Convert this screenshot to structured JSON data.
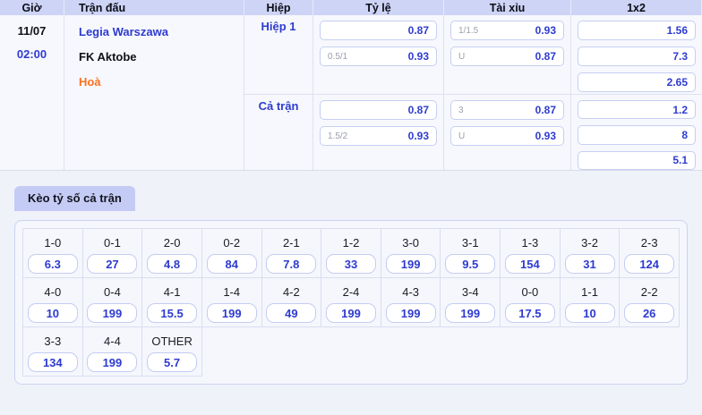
{
  "colors": {
    "accent_blue": "#2e3bd0",
    "draw_orange": "#fb7220",
    "header_bg": "#cdd4f6",
    "tab_bg": "#c4cbf4",
    "page_bg": "#f0f2fa"
  },
  "match_table": {
    "headers": {
      "time": "Giờ",
      "match": "Trận đấu",
      "half": "Hiệp",
      "handicap": "Tỷ lệ",
      "over_under": "Tài xỉu",
      "one_x_two": "1x2"
    },
    "match": {
      "date": "11/07",
      "kickoff": "02:00",
      "home_team": "Legia Warszawa",
      "away_team": "FK Aktobe",
      "draw_label": "Hoà"
    },
    "sections": [
      {
        "label": "Hiệp 1",
        "handicap": [
          {
            "line": "",
            "value": "0.87"
          },
          {
            "line": "0.5/1",
            "value": "0.93"
          }
        ],
        "over_under": [
          {
            "line": "1/1.5",
            "value": "0.93"
          },
          {
            "line": "U",
            "value": "0.87"
          }
        ],
        "one_x_two": [
          {
            "value": "1.56"
          },
          {
            "value": "7.3"
          },
          {
            "value": "2.65"
          }
        ]
      },
      {
        "label": "Cả trận",
        "handicap": [
          {
            "line": "",
            "value": "0.87"
          },
          {
            "line": "1.5/2",
            "value": "0.93"
          }
        ],
        "over_under": [
          {
            "line": "3",
            "value": "0.87"
          },
          {
            "line": "U",
            "value": "0.93"
          }
        ],
        "one_x_two": [
          {
            "value": "1.2"
          },
          {
            "value": "8"
          },
          {
            "value": "5.1"
          }
        ]
      }
    ]
  },
  "score_section": {
    "tab_label": "Kèo tỷ số cả trận",
    "columns": 11,
    "cells": [
      {
        "label": "1-0",
        "value": "6.3"
      },
      {
        "label": "0-1",
        "value": "27"
      },
      {
        "label": "2-0",
        "value": "4.8"
      },
      {
        "label": "0-2",
        "value": "84"
      },
      {
        "label": "2-1",
        "value": "7.8"
      },
      {
        "label": "1-2",
        "value": "33"
      },
      {
        "label": "3-0",
        "value": "199"
      },
      {
        "label": "3-1",
        "value": "9.5"
      },
      {
        "label": "1-3",
        "value": "154"
      },
      {
        "label": "3-2",
        "value": "31"
      },
      {
        "label": "2-3",
        "value": "124"
      },
      {
        "label": "4-0",
        "value": "10"
      },
      {
        "label": "0-4",
        "value": "199"
      },
      {
        "label": "4-1",
        "value": "15.5"
      },
      {
        "label": "1-4",
        "value": "199"
      },
      {
        "label": "4-2",
        "value": "49"
      },
      {
        "label": "2-4",
        "value": "199"
      },
      {
        "label": "4-3",
        "value": "199"
      },
      {
        "label": "3-4",
        "value": "199"
      },
      {
        "label": "0-0",
        "value": "17.5"
      },
      {
        "label": "1-1",
        "value": "10"
      },
      {
        "label": "2-2",
        "value": "26"
      },
      {
        "label": "3-3",
        "value": "134"
      },
      {
        "label": "4-4",
        "value": "199"
      },
      {
        "label": "OTHER",
        "value": "5.7"
      }
    ]
  }
}
